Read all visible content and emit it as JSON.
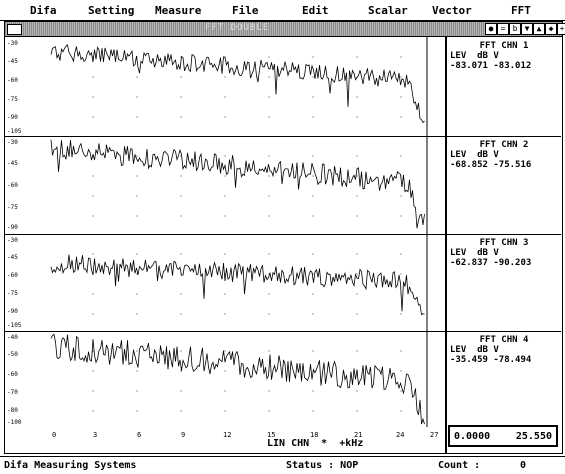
{
  "menu": [
    "Difa",
    "Setting",
    "Measure",
    "File",
    "Edit",
    "Scalar",
    "Vector",
    "FFT"
  ],
  "window": {
    "title": "FFT DOUBLE"
  },
  "window_controls": [
    "●",
    "=",
    "b",
    "▼",
    "▲",
    "◆",
    "+"
  ],
  "channels": [
    {
      "title": "FFT CHN 1",
      "unit": "LEV  dB V",
      "value1": "-83.071",
      "value2": "-83.012",
      "yticks": [
        "-30",
        "-45",
        "-60",
        "-75",
        "-90",
        "-105"
      ]
    },
    {
      "title": "FFT CHN 2",
      "unit": "LEV  dB V",
      "value1": "-68.852",
      "value2": "-75.516",
      "yticks": [
        "-30",
        "-45",
        "-60",
        "-75",
        "-90"
      ]
    },
    {
      "title": "FFT CHN 3",
      "unit": "LEV  dB V",
      "value1": "-62.837",
      "value2": "-90.203",
      "yticks": [
        "-30",
        "-45",
        "-60",
        "-75",
        "-90",
        "-105"
      ]
    },
    {
      "title": "FFT CHN 4",
      "unit": "LEV  dB V",
      "value1": "-35.459",
      "value2": "-78.494",
      "yticks": [
        "-40",
        "-50",
        "-60",
        "-70",
        "-80",
        "-100"
      ]
    }
  ],
  "x_axis": {
    "ticks": [
      "0",
      "3",
      "6",
      "9",
      "12",
      "15",
      "18",
      "21",
      "24",
      "27"
    ],
    "label": "LIN CHN  *  +kHz"
  },
  "range": {
    "min": "0.0000",
    "max": "25.550"
  },
  "status": {
    "left": "Difa Measuring Systems",
    "status": "Status : NOP",
    "count_label": "Count :",
    "count_value": "0"
  }
}
